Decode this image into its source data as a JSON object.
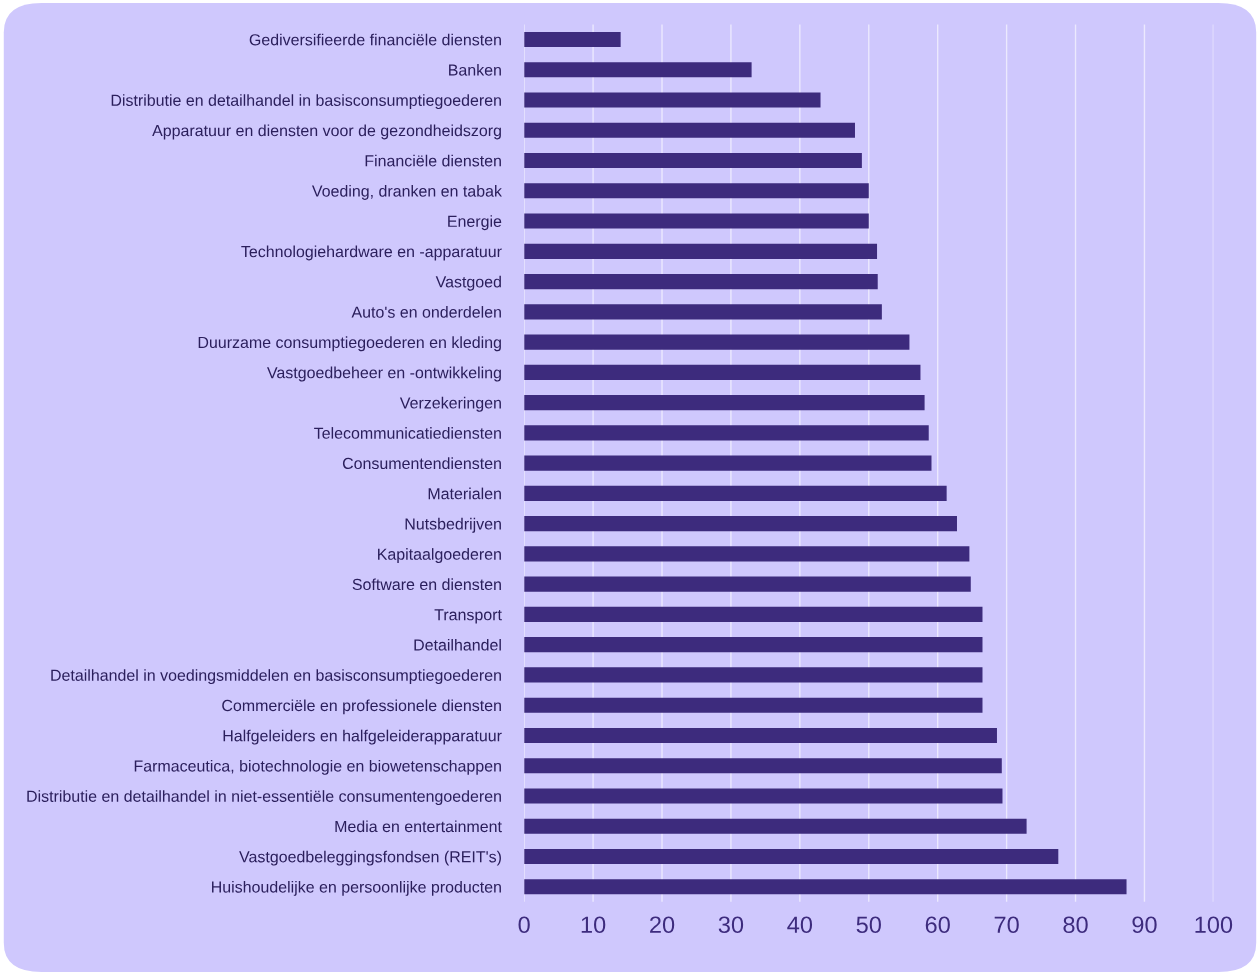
{
  "chart_data": {
    "type": "bar",
    "orientation": "horizontal",
    "categories": [
      "Gediversifieerde financiële diensten",
      "Banken",
      "Distributie en detailhandel in basisconsumptiegoederen",
      "Apparatuur en diensten voor de gezondheidszorg",
      "Financiële diensten",
      "Voeding, dranken en tabak",
      "Energie",
      "Technologiehardware en -apparatuur",
      "Vastgoed",
      "Auto's en onderdelen",
      "Duurzame consumptiegoederen en kleding",
      "Vastgoedbeheer en -ontwikkeling",
      "Verzekeringen",
      "Telecommunicatiediensten",
      "Consumentendiensten",
      "Materialen",
      "Nutsbedrijven",
      "Kapitaalgoederen",
      "Software en diensten",
      "Transport",
      "Detailhandel",
      "Detailhandel in voedingsmiddelen en basisconsumptiegoederen",
      "Commerciële en professionele diensten",
      "Halfgeleiders en halfgeleiderapparatuur",
      "Farmaceutica, biotechnologie en biowetenschappen",
      "Distributie en detailhandel in niet-essentiële consumentengoederen",
      "Media en entertainment",
      "Vastgoedbeleggingsfondsen (REIT's)",
      "Huishoudelijke en persoonlijke producten"
    ],
    "values": [
      14,
      33,
      43,
      48,
      49,
      50,
      50,
      51.2,
      51.3,
      51.9,
      55.9,
      57.5,
      58.1,
      58.7,
      59.1,
      61.3,
      62.8,
      64.6,
      64.8,
      66.5,
      66.5,
      66.5,
      66.5,
      68.6,
      69.3,
      69.4,
      72.9,
      77.5,
      87.4
    ],
    "color": "#3d2b7d",
    "xlim": [
      0,
      100
    ],
    "xticks": [
      0,
      10,
      20,
      30,
      40,
      50,
      60,
      70,
      80,
      90,
      100
    ],
    "grid": "x"
  }
}
